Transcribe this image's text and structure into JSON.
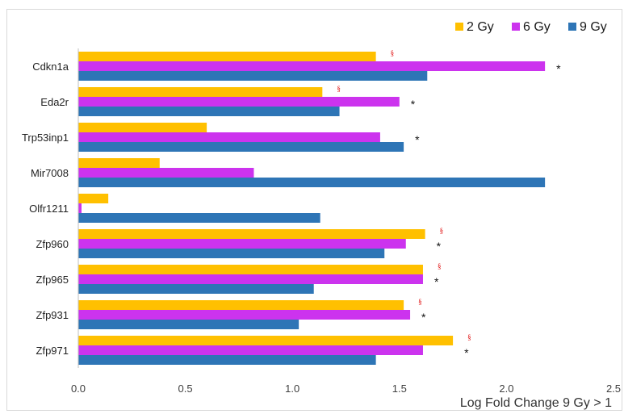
{
  "chart_data": {
    "type": "bar",
    "orientation": "horizontal",
    "categories": [
      "Cdkn1a",
      "Eda2r",
      "Trp53inp1",
      "Mir7008",
      "Olfr1211",
      "Zfp960",
      "Zfp965",
      "Zfp931",
      "Zfp971"
    ],
    "series": [
      {
        "name": "2 Gy",
        "color": "#ffc000",
        "values": [
          1.39,
          1.14,
          0.6,
          0.38,
          0.14,
          1.62,
          1.61,
          1.52,
          1.75
        ]
      },
      {
        "name": "6 Gy",
        "color": "#cc33ee",
        "values": [
          2.18,
          1.5,
          1.41,
          0.82,
          0.015,
          1.53,
          1.61,
          1.55,
          1.61
        ]
      },
      {
        "name": "9 Gy",
        "color": "#2e75b6",
        "values": [
          1.63,
          1.22,
          1.52,
          2.18,
          1.13,
          1.43,
          1.1,
          1.03,
          1.39
        ]
      }
    ],
    "xlabel": "Log Fold Change 9 Gy > 1",
    "xlim": [
      0,
      2.5
    ],
    "xticks": [
      "0.0",
      "0.5",
      "1.0",
      "1.5",
      "2.0",
      "2.5"
    ],
    "grid": false,
    "legend_position": "top-right",
    "star_symbol": "*",
    "section_symbol": "§",
    "star_categories": [
      "Cdkn1a",
      "Eda2r",
      "Trp53inp1",
      "Zfp960",
      "Zfp965",
      "Zfp931",
      "Zfp971"
    ],
    "section_categories": [
      "Cdkn1a",
      "Eda2r",
      "Zfp960",
      "Zfp965",
      "Zfp931",
      "Zfp971"
    ]
  }
}
